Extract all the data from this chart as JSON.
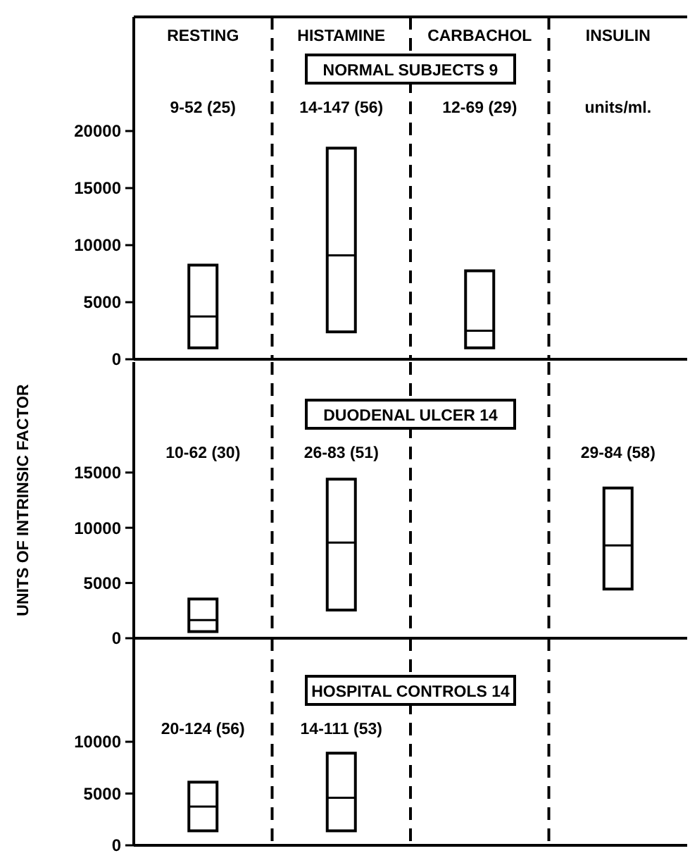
{
  "chart_data": [
    {
      "type": "box",
      "title": "NORMAL SUBJECTS 9",
      "categories": [
        "RESTING",
        "HISTAMINE",
        "CARBACHOL",
        "INSULIN"
      ],
      "ylim": [
        0,
        30000
      ],
      "yticks": [
        0,
        5000,
        10000,
        15000,
        20000
      ],
      "value_labels": [
        "9-52 (25)",
        "14-147 (56)",
        "12-69 (29)",
        null
      ],
      "annotations": [
        "units/ml."
      ],
      "boxes": [
        {
          "low": 1000,
          "q1": 1000,
          "median": 3750,
          "q3": 8250,
          "high": 8250
        },
        {
          "low": 2400,
          "q1": 2400,
          "median": 9100,
          "q3": 18500,
          "high": 18500
        },
        {
          "low": 1000,
          "q1": 1000,
          "median": 2500,
          "q3": 7750,
          "high": 7750
        },
        null
      ]
    },
    {
      "type": "box",
      "title": "DUODENAL ULCER 14",
      "ylabel": "UNITS OF INTRINSIC FACTOR",
      "categories": [
        null,
        null,
        null,
        null
      ],
      "ylim": [
        0,
        25000
      ],
      "yticks": [
        0,
        5000,
        10000,
        15000
      ],
      "value_labels": [
        "10-62 (30)",
        "26-83 (51)",
        null,
        "29-84 (58)"
      ],
      "boxes": [
        {
          "low": 600,
          "q1": 600,
          "median": 1650,
          "q3": 3550,
          "high": 3550
        },
        {
          "low": 2550,
          "q1": 2550,
          "median": 8650,
          "q3": 14400,
          "high": 14400
        },
        null,
        {
          "low": 4450,
          "q1": 4450,
          "median": 8400,
          "q3": 13600,
          "high": 13600
        }
      ]
    },
    {
      "type": "box",
      "title": "HOSPITAL CONTROLS 14",
      "categories": [
        null,
        null,
        null,
        null
      ],
      "ylim": [
        0,
        20000
      ],
      "yticks": [
        0,
        5000,
        10000
      ],
      "value_labels": [
        "20-124 (56)",
        "14-111 (53)",
        null,
        null
      ],
      "boxes": [
        {
          "low": 1400,
          "q1": 1400,
          "median": 3750,
          "q3": 6100,
          "high": 6100
        },
        {
          "low": 1400,
          "q1": 1400,
          "median": 4600,
          "q3": 8900,
          "high": 8900
        },
        null,
        null
      ]
    }
  ]
}
